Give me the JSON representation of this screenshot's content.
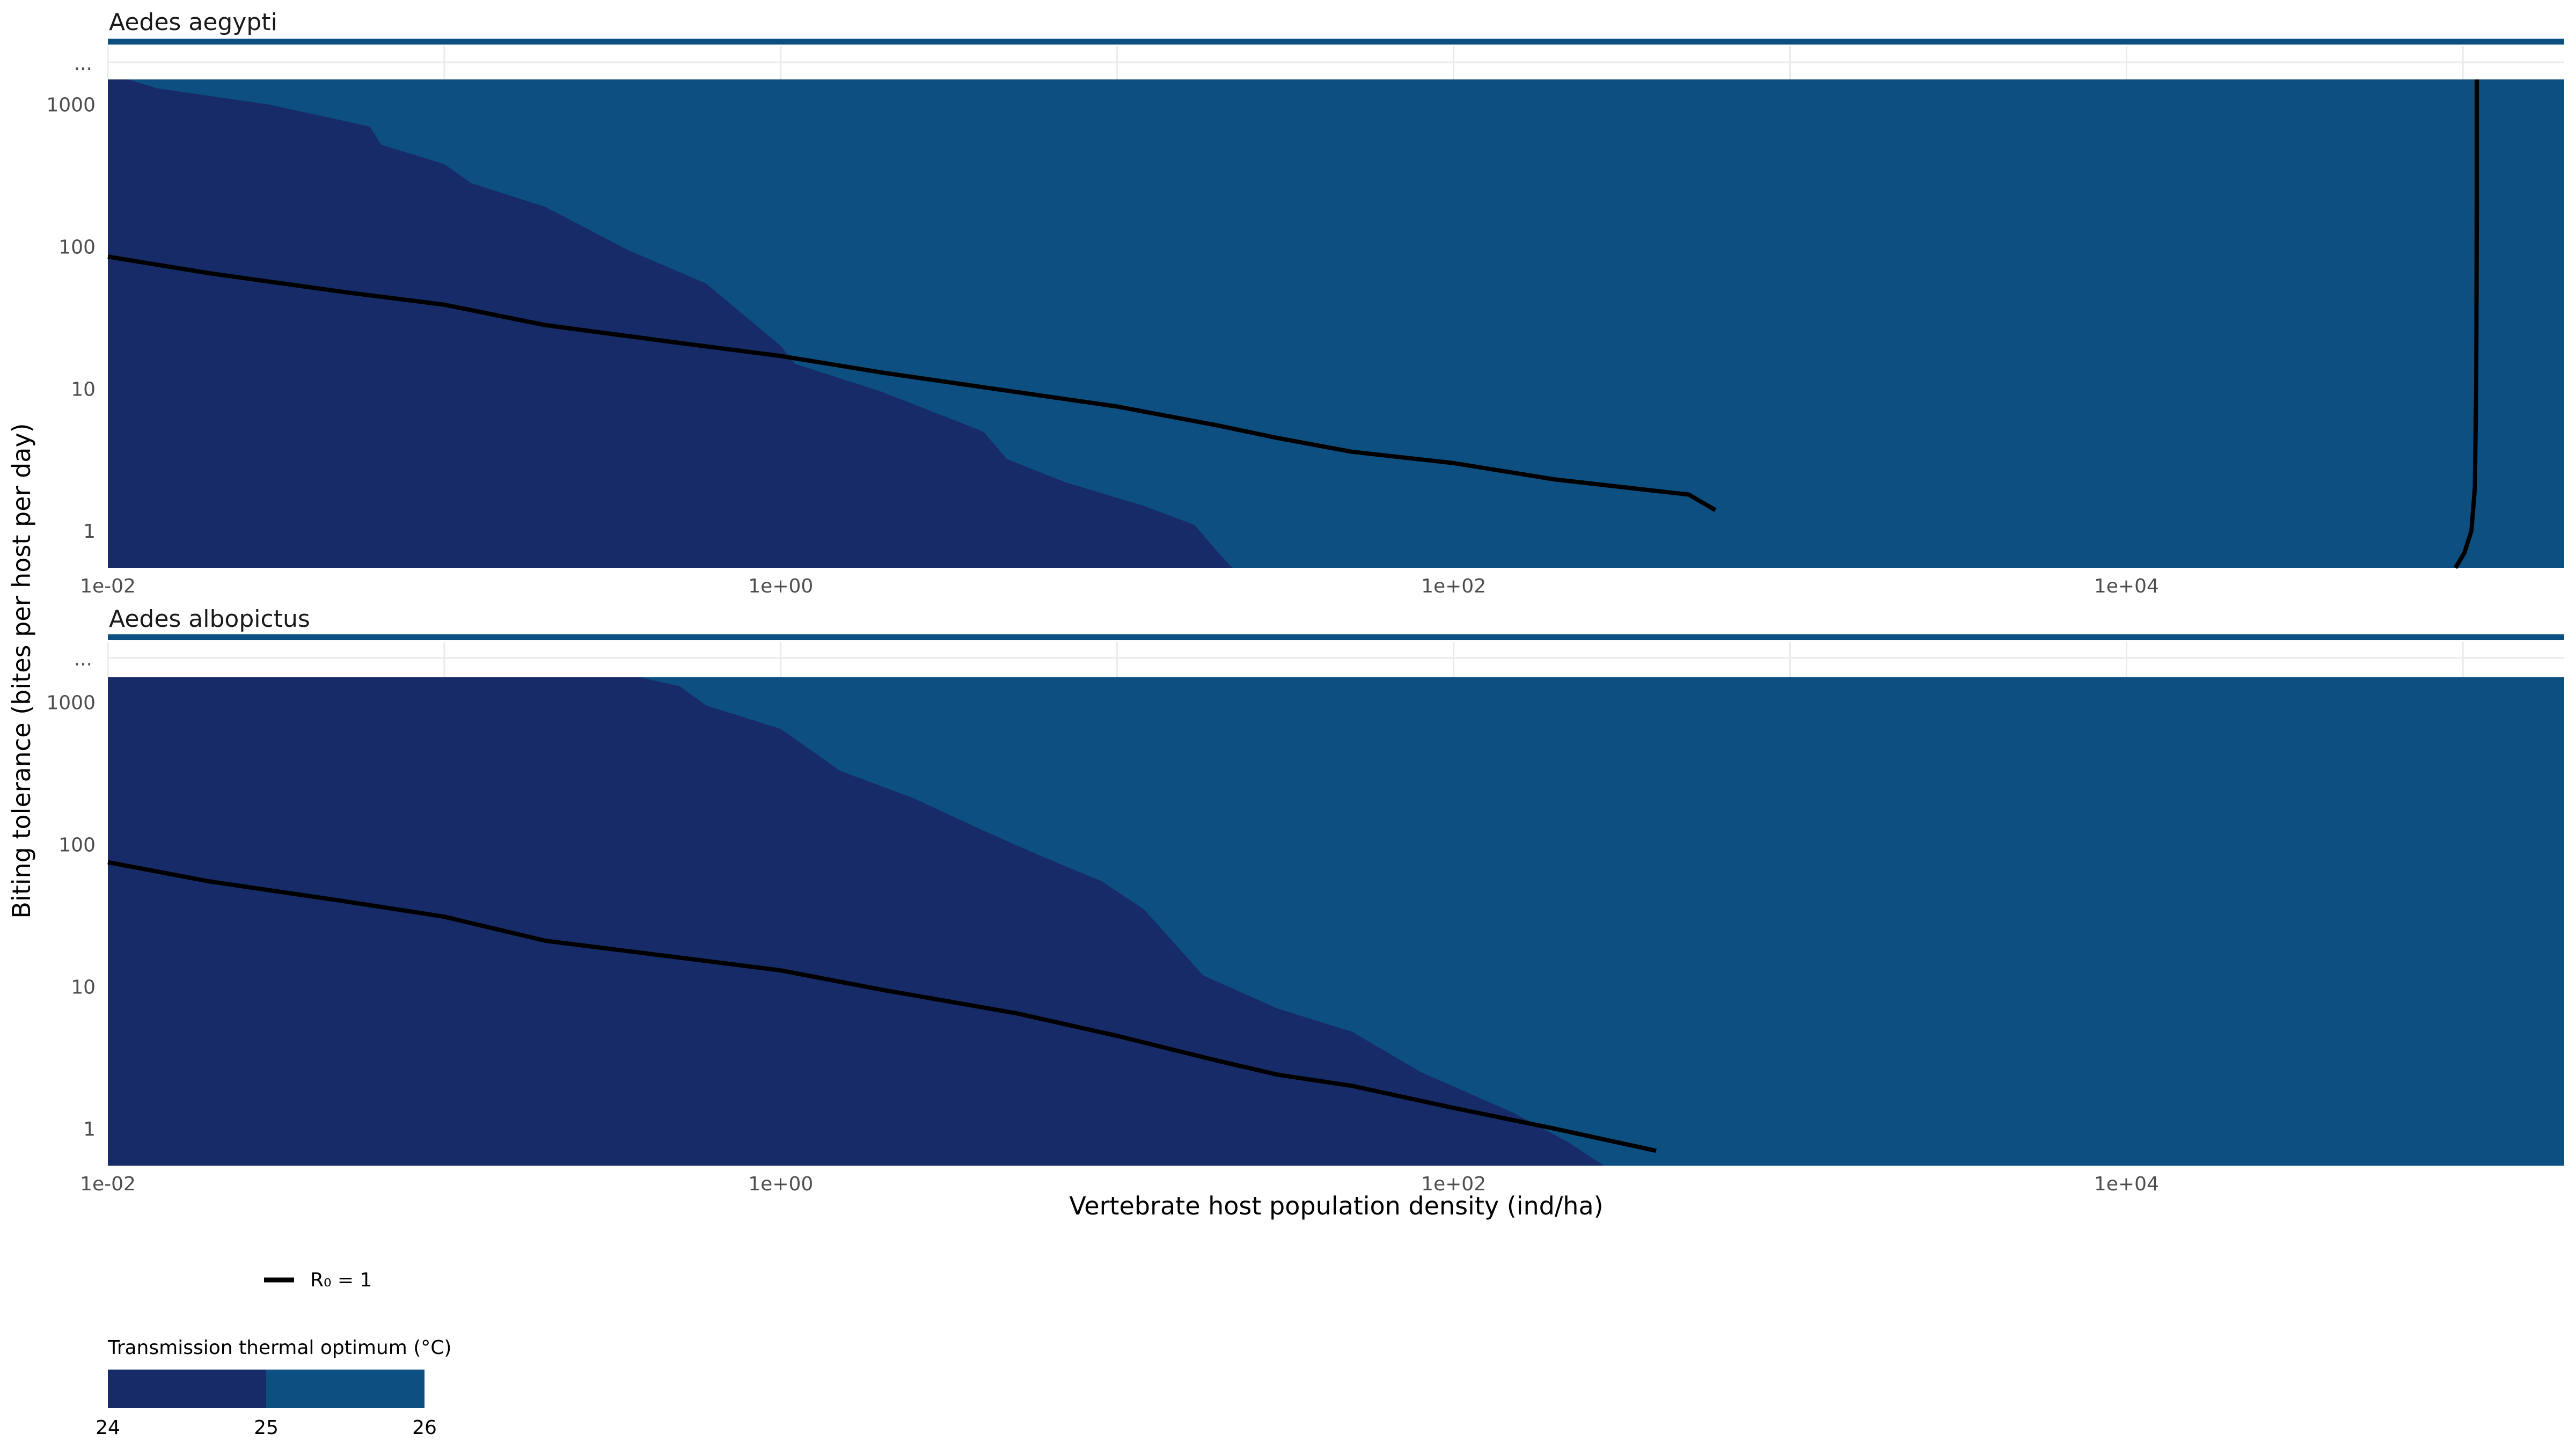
{
  "chart_data": {
    "type": "area",
    "xlabel": "Vertebrate host population density (ind/ha)",
    "ylabel": "Biting tolerance (bites per host per day)",
    "x_scale": "log10",
    "y_scale": "log10",
    "xlim": [
      0.01,
      200000
    ],
    "ylim": [
      0.55,
      1500
    ],
    "x_ticks": [
      0.01,
      1,
      100,
      10000
    ],
    "x_tick_labels": [
      "1e-02",
      "1e+00",
      "1e+02",
      "1e+04"
    ],
    "y_ticks": [
      1,
      10,
      100,
      1000
    ],
    "y_tick_labels": [
      "1",
      "10",
      "100",
      "1000"
    ],
    "y_overflow_label": "...",
    "grid": true,
    "legend_position": "bottom-left",
    "r0_legend_label": "R₀ = 1",
    "fill_legend": {
      "title": "Transmission thermal optimum (°C)",
      "breaks": [
        "24",
        "25",
        "26"
      ],
      "colors": [
        "#162B67",
        "#0D4F80"
      ]
    },
    "colors": {
      "fill_low": "#162B67",
      "fill_high": "#0D4F80",
      "strip": "#0D4F80",
      "r0_line": "#000000"
    },
    "facets": [
      {
        "title": "Aedes aegypti",
        "boundary_25C": {
          "x": [
            0.0115,
            0.014,
            0.02,
            0.03,
            0.06,
            0.065,
            0.1,
            0.12,
            0.2,
            0.35,
            0.6,
            1.0,
            1.1,
            2.0,
            4.0,
            4.7,
            7.0,
            12.0,
            17.0,
            20.0,
            22.0
          ],
          "y": [
            1500,
            1300,
            1150,
            1000,
            700,
            520,
            380,
            280,
            190,
            95,
            55,
            20,
            15,
            9.5,
            5.0,
            3.2,
            2.2,
            1.5,
            1.1,
            0.7,
            0.55
          ]
        },
        "r0_curve": {
          "x": [
            0.01,
            0.02,
            0.05,
            0.1,
            0.2,
            0.5,
            1.0,
            2.0,
            5.0,
            10.0,
            20.0,
            30.0,
            50.0,
            100.0,
            200.0,
            500.0,
            600.0
          ],
          "y": [
            85,
            65,
            48,
            39,
            28,
            21,
            17,
            13,
            9.5,
            7.5,
            5.5,
            4.5,
            3.6,
            3.0,
            2.3,
            1.8,
            1.4
          ]
        },
        "r0_curve_2": {
          "x": [
            95000,
            101000,
            106000,
            108500,
            109500,
            110000,
            110000
          ],
          "y": [
            0.55,
            0.7,
            1.0,
            2.0,
            10.0,
            200.0,
            1500.0
          ]
        }
      },
      {
        "title": "Aedes albopictus",
        "boundary_25C": {
          "x": [
            0.38,
            0.5,
            0.6,
            1.0,
            1.5,
            2.5,
            4.0,
            6.0,
            9.0,
            12.0,
            18.0,
            30.0,
            50.0,
            80.0,
            150.0,
            220.0,
            280.0
          ],
          "y": [
            1500,
            1300,
            950,
            650,
            330,
            210,
            125,
            82,
            55,
            35,
            12,
            7.0,
            4.8,
            2.5,
            1.3,
            0.8,
            0.55
          ]
        },
        "r0_curve": {
          "x": [
            0.01,
            0.02,
            0.05,
            0.1,
            0.2,
            0.5,
            1.0,
            2.0,
            5.0,
            10.0,
            20.0,
            30.0,
            50.0,
            100.0,
            200.0,
            400.0
          ],
          "y": [
            75,
            55,
            40,
            31,
            21,
            16,
            13,
            9.5,
            6.5,
            4.5,
            3.0,
            2.4,
            2.0,
            1.4,
            1.0,
            0.7
          ]
        }
      }
    ]
  }
}
